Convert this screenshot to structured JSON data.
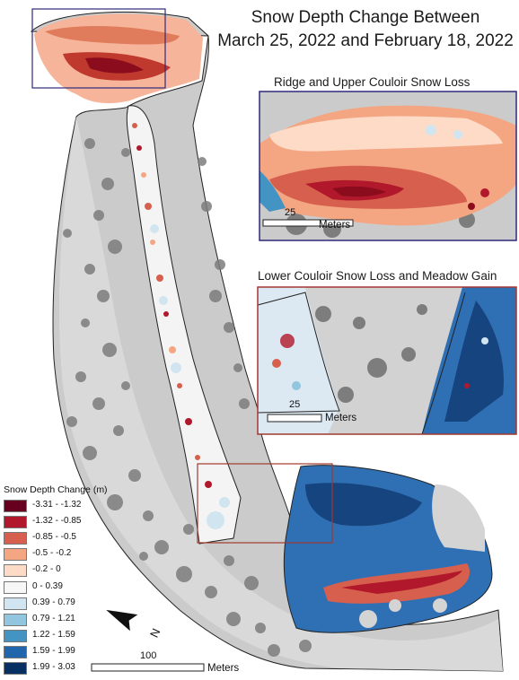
{
  "title_line1": "Snow Depth Change Between",
  "title_line2": "March 25, 2022 and February 18, 2022",
  "inset_top_title": "Ridge and Upper Couloir Snow Loss",
  "inset_bottom_title": "Lower Couloir Snow Loss and Meadow Gain",
  "legend": {
    "title": "Snow Depth Change (m)",
    "classes": [
      {
        "label": "-3.31 - -1.32",
        "color": "#67001f"
      },
      {
        "label": "-1.32 - -0.85",
        "color": "#b2182b"
      },
      {
        "label": "-0.85 - -0.5",
        "color": "#d6604d"
      },
      {
        "label": "-0.5 - -0.2",
        "color": "#f4a582"
      },
      {
        "label": "-0.2 - 0",
        "color": "#fddbc7"
      },
      {
        "label": "0 - 0.39",
        "color": "#f7f7f7"
      },
      {
        "label": "0.39 - 0.79",
        "color": "#d1e5f0"
      },
      {
        "label": "0.79 - 1.21",
        "color": "#92c5de"
      },
      {
        "label": "1.22 - 1.59",
        "color": "#4393c3"
      },
      {
        "label": "1.59 - 1.99",
        "color": "#2166ac"
      },
      {
        "label": "1.99 - 3.03",
        "color": "#053061"
      }
    ]
  },
  "scalebars": {
    "main": {
      "value": "100",
      "unit": "Meters"
    },
    "inset_top": {
      "value": "25",
      "unit": "Meters"
    },
    "inset_bottom": {
      "value": "25",
      "unit": "Meters"
    }
  },
  "north_arrow_label": "N",
  "colors": {
    "inset_top_frame": "#2e2a7a",
    "inset_bottom_frame": "#a03a2e",
    "hillshade": "#c9c9c9",
    "tree": "#7d7d7d"
  }
}
